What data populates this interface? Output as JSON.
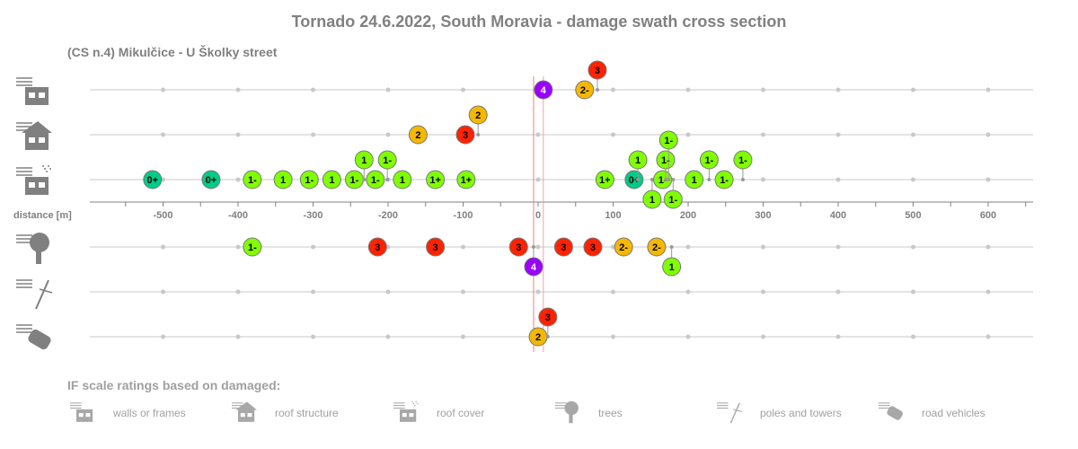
{
  "chart_data": {
    "type": "scatter",
    "title": "Tornado 24.6.2022, South Moravia - damage swath cross section",
    "subtitle": "(CS n.4)  Mikulčice - U Školky street",
    "xlabel": "distance [m]",
    "xlim": [
      -590,
      660
    ],
    "xticks": [
      -500,
      -400,
      -300,
      -200,
      -100,
      0,
      100,
      200,
      300,
      400,
      500,
      600
    ],
    "xtick_labels": [
      "-500",
      "-400",
      "-300",
      "-200",
      "-100",
      "0",
      "100",
      "200",
      "300",
      "400",
      "500",
      "600"
    ],
    "reference_lines": [
      -6,
      7
    ],
    "rating_colors": {
      "0+": "#00cc88",
      "1-": "#80ff00",
      "1": "#80ff00",
      "1+": "#80ff00",
      "2-": "#f5b800",
      "2": "#f5b800",
      "3": "#ff2200",
      "4": "#9900ff"
    },
    "series": [
      {
        "name": "walls or frames",
        "icon": "walls-icon",
        "points": [
          [
            7,
            "4"
          ],
          [
            62,
            "2-"
          ],
          [
            79,
            "3"
          ]
        ]
      },
      {
        "name": "roof structure",
        "icon": "roof-structure-icon",
        "points": [
          [
            -160,
            "2"
          ],
          [
            -97,
            "3"
          ],
          [
            -80,
            "2"
          ]
        ]
      },
      {
        "name": "roof cover",
        "icon": "roof-cover-icon",
        "points": [
          [
            -514,
            "0+"
          ],
          [
            -436,
            "0+"
          ],
          [
            -381,
            "1-"
          ],
          [
            -340,
            "1"
          ],
          [
            -305,
            "1-"
          ],
          [
            -275,
            "1"
          ],
          [
            -245,
            "1-"
          ],
          [
            -232,
            "1"
          ],
          [
            -217,
            "1-"
          ],
          [
            -201,
            "1-"
          ],
          [
            -181,
            "1"
          ],
          [
            -137,
            "1+"
          ],
          [
            -96,
            "1+"
          ],
          [
            89,
            "1+"
          ],
          [
            128,
            "0+"
          ],
          [
            133,
            "1"
          ],
          [
            152,
            "1"
          ],
          [
            166,
            "1-"
          ],
          [
            170,
            "1-"
          ],
          [
            174,
            "1-"
          ],
          [
            180,
            "1-"
          ],
          [
            208,
            "1"
          ],
          [
            228,
            "1-"
          ],
          [
            248,
            "1-"
          ],
          [
            273,
            "1-"
          ]
        ]
      },
      {
        "name": "trees",
        "icon": "trees-icon",
        "points": [
          [
            -381,
            "1-"
          ],
          [
            -214,
            "3"
          ],
          [
            -137,
            "3"
          ],
          [
            -26,
            "3"
          ],
          [
            -6,
            "4"
          ],
          [
            34,
            "3"
          ],
          [
            73,
            "3"
          ],
          [
            114,
            "2-"
          ],
          [
            158,
            "2-"
          ],
          [
            178,
            "1"
          ]
        ]
      },
      {
        "name": "poles and towers",
        "icon": "poles-icon",
        "points": []
      },
      {
        "name": "road vehicles",
        "icon": "vehicles-icon",
        "points": [
          [
            0,
            "2"
          ],
          [
            13,
            "3"
          ]
        ]
      }
    ],
    "legend_title": "IF scale ratings based on damaged:",
    "legend": [
      "walls or frames",
      "roof structure",
      "roof cover",
      "trees",
      "poles and towers",
      "road vehicles"
    ]
  }
}
